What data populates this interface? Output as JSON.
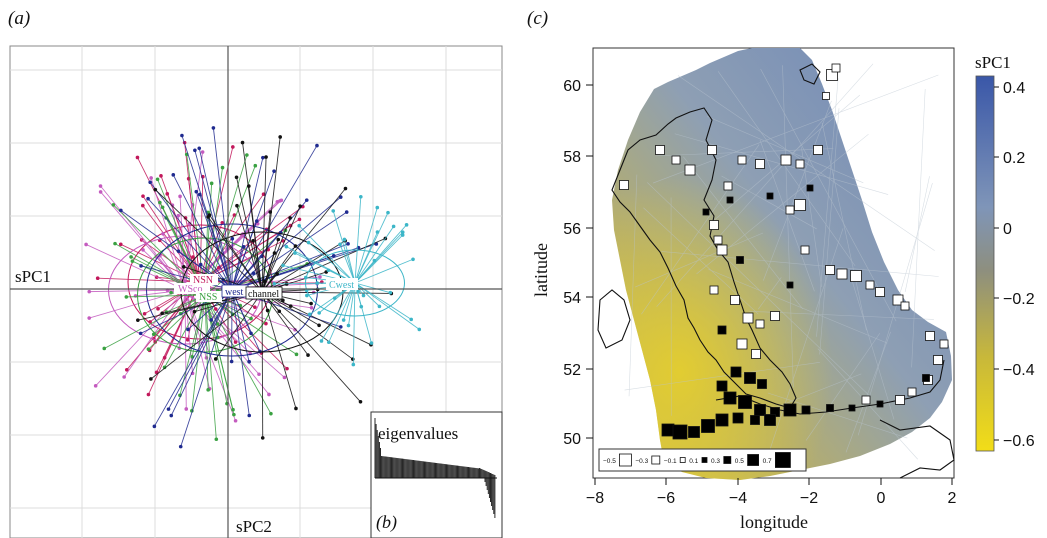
{
  "panel_a": {
    "tag": "(a)",
    "axis_h_label": "sPC1",
    "axis_v_label": "sPC2",
    "groups": [
      {
        "name": "NSN",
        "color": "#c2185b"
      },
      {
        "name": "WSco",
        "color": "#c45bbf"
      },
      {
        "name": "NSS",
        "color": "#3aa142"
      },
      {
        "name": "west",
        "color": "#1f2a8f"
      },
      {
        "name": "channel",
        "color": "#111111"
      },
      {
        "name": "Cwest",
        "color": "#3cb6c8"
      }
    ]
  },
  "panel_b": {
    "tag": "(b)",
    "title": "eigenvalues"
  },
  "panel_c": {
    "tag": "(c)",
    "xlabel": "longitude",
    "ylabel": "latitude",
    "xticks": [
      "−8",
      "−6",
      "−4",
      "−2",
      "0",
      "2"
    ],
    "yticks": [
      "50",
      "52",
      "54",
      "56",
      "58",
      "60"
    ],
    "colorbar": {
      "title": "sPC1",
      "ticks": [
        "0.4",
        "0.2",
        "0",
        "−0.2",
        "−0.4",
        "−0.6"
      ],
      "color_high": "#3a57a8",
      "color_mid": "#8c8c7a",
      "color_low": "#f0dc1e"
    },
    "size_legend": [
      "−0.5",
      "−0.3",
      "−0.1",
      "0.1",
      "0.3",
      "0.5",
      "0.7"
    ]
  }
}
